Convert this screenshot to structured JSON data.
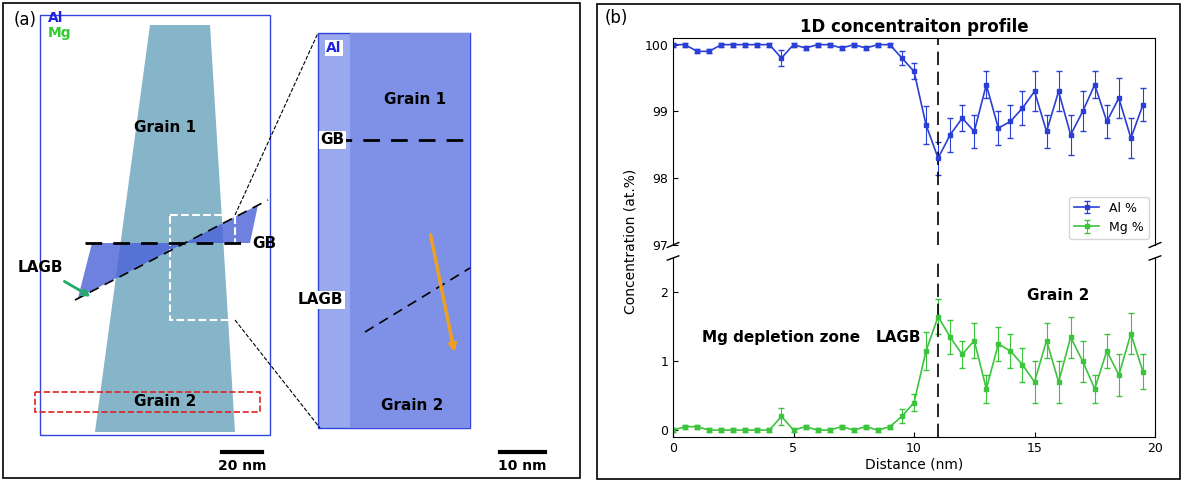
{
  "panel_a": {
    "label": "(a)",
    "elements": [
      {
        "name": "Al",
        "color": "#2222dd"
      },
      {
        "name": "Mg",
        "color": "#33cc33"
      }
    ],
    "overview": {
      "grain_top": "Grain 1",
      "boundary": "GB",
      "low_angle_boundary": "LAGB",
      "grain_bottom": "Grain 2",
      "scale_bar": "20 nm"
    },
    "zoom": {
      "element": "Al",
      "grain_top": "Grain 1",
      "boundary": "GB",
      "low_angle_boundary": "LAGB",
      "grain_bottom": "Grain 2",
      "scale_bar": "10 nm"
    }
  },
  "chart_data": [
    {
      "type": "line",
      "title": "1D concentraiton profile",
      "annotations": [
        "(b)"
      ],
      "x": [
        0,
        0.5,
        1,
        1.5,
        2,
        2.5,
        3,
        3.5,
        4,
        4.5,
        5,
        5.5,
        6,
        6.5,
        7,
        7.5,
        8,
        8.5,
        9,
        9.5,
        10,
        10.5,
        11,
        11.5,
        12,
        12.5,
        13,
        13.5,
        14,
        14.5,
        15,
        15.5,
        16,
        16.5,
        17,
        17.5,
        18,
        18.5,
        19,
        19.5
      ],
      "xlim": [
        0,
        20
      ],
      "ylim": [
        97,
        100.1
      ],
      "yticks": [
        97,
        98,
        99,
        100
      ],
      "tick_labels": "y",
      "legend": "lower right",
      "reference_x": 11,
      "series": [
        {
          "name": "Al %",
          "color": "#2a3fd6",
          "marker": "square",
          "values": [
            100,
            100,
            99.9,
            99.9,
            100,
            100,
            100,
            100,
            100,
            99.8,
            100,
            99.95,
            100,
            100,
            99.95,
            100,
            99.95,
            100,
            100,
            99.8,
            99.6,
            98.8,
            98.3,
            98.65,
            98.9,
            98.7,
            99.4,
            98.75,
            98.85,
            99.05,
            99.3,
            98.7,
            99.3,
            98.65,
            99.0,
            99.4,
            98.85,
            99.2,
            98.6,
            99.1
          ],
          "errors": [
            0.03,
            0.03,
            0.03,
            0.03,
            0.03,
            0.03,
            0.03,
            0.03,
            0.03,
            0.12,
            0.03,
            0.03,
            0.03,
            0.03,
            0.03,
            0.03,
            0.03,
            0.03,
            0.03,
            0.1,
            0.12,
            0.28,
            0.25,
            0.25,
            0.2,
            0.25,
            0.2,
            0.25,
            0.25,
            0.25,
            0.3,
            0.25,
            0.3,
            0.3,
            0.3,
            0.2,
            0.25,
            0.3,
            0.3,
            0.25
          ]
        }
      ]
    },
    {
      "type": "line",
      "xlabel": "Distance (nm)",
      "ylabel": "Concentration (at.%)",
      "annotations": [
        "Mg depletion zone",
        "LAGB",
        "Grain 2"
      ],
      "x": [
        0,
        0.5,
        1,
        1.5,
        2,
        2.5,
        3,
        3.5,
        4,
        4.5,
        5,
        5.5,
        6,
        6.5,
        7,
        7.5,
        8,
        8.5,
        9,
        9.5,
        10,
        10.5,
        11,
        11.5,
        12,
        12.5,
        13,
        13.5,
        14,
        14.5,
        15,
        15.5,
        16,
        16.5,
        17,
        17.5,
        18,
        18.5,
        19,
        19.5
      ],
      "xlim": [
        0,
        20
      ],
      "xticks": [
        0,
        5,
        10,
        15,
        20
      ],
      "ylim": [
        -0.1,
        2.5
      ],
      "yticks": [
        0,
        1,
        2
      ],
      "reference_x": 11,
      "series": [
        {
          "name": "Mg %",
          "color": "#3cc43c",
          "marker": "square",
          "values": [
            0,
            0.05,
            0.05,
            0,
            0,
            0,
            0,
            0,
            0,
            0.2,
            0,
            0.05,
            0,
            0,
            0.05,
            0,
            0.05,
            0,
            0.05,
            0.2,
            0.4,
            1.15,
            1.65,
            1.35,
            1.1,
            1.3,
            0.6,
            1.25,
            1.15,
            0.95,
            0.7,
            1.3,
            0.7,
            1.35,
            1.0,
            0.6,
            1.15,
            0.8,
            1.4,
            0.85
          ],
          "errors": [
            0.03,
            0.03,
            0.03,
            0.03,
            0.03,
            0.03,
            0.03,
            0.03,
            0.03,
            0.12,
            0.03,
            0.03,
            0.03,
            0.03,
            0.03,
            0.03,
            0.03,
            0.03,
            0.03,
            0.1,
            0.12,
            0.28,
            0.25,
            0.25,
            0.2,
            0.25,
            0.2,
            0.25,
            0.25,
            0.25,
            0.3,
            0.25,
            0.3,
            0.3,
            0.3,
            0.2,
            0.25,
            0.3,
            0.3,
            0.25
          ]
        }
      ]
    }
  ]
}
